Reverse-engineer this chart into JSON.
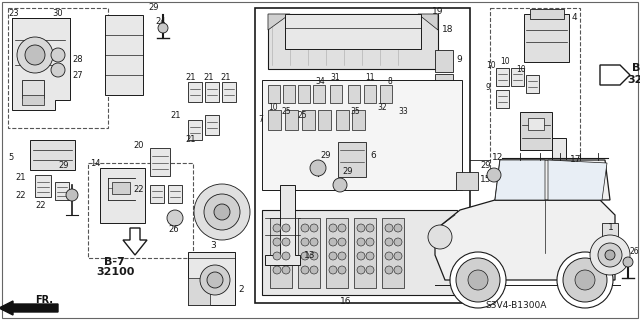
{
  "bg_color": "#ffffff",
  "fig_width": 6.4,
  "fig_height": 3.2,
  "diagram_code": "S3V4-B1300A",
  "dark": "#1a1a1a",
  "gray_fill": "#d8d8d8",
  "light_fill": "#efefef"
}
